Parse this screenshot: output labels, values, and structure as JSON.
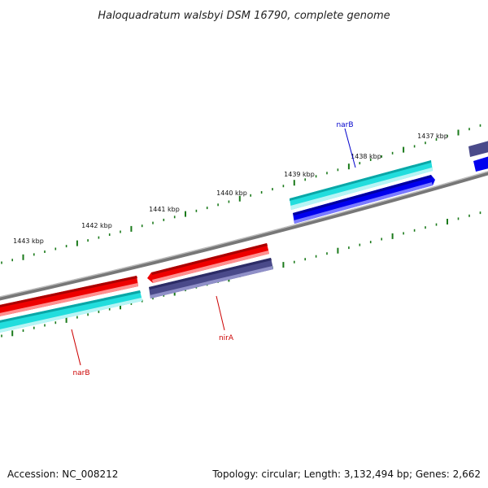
{
  "title": "Haloquadratum walsbyi DSM 16790, complete genome",
  "footer": {
    "accession": "Accession: NC_008212",
    "summary": "Topology: circular; Length: 3,132,494 bp; Genes: 2,662"
  },
  "scale": {
    "major_labels": [
      "1443 kbp",
      "1442 kbp",
      "1441 kbp",
      "1440 kbp",
      "1439 kbp",
      "1438 kbp",
      "1437 kbp"
    ]
  },
  "gene_labels": [
    {
      "text": "narB",
      "color": "#0000cc"
    },
    {
      "text": "nirA",
      "color": "#cc0000"
    },
    {
      "text": "narB",
      "color": "#cc0000"
    }
  ],
  "colors": {
    "backbone": "#888888",
    "ticks": "#1a7a1a",
    "red": "#ee0000",
    "cyan": "#22dddd",
    "blue": "#0000ee",
    "slate": "#4a4a8a"
  }
}
